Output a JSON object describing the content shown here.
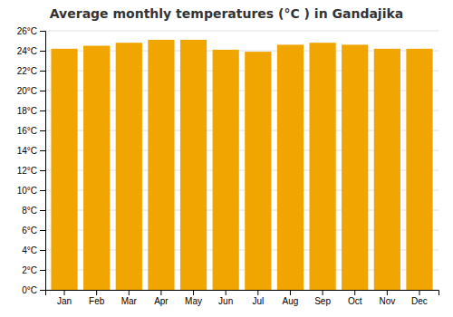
{
  "chart_data": {
    "type": "bar",
    "title": "Average monthly temperatures (°C ) in Gandajika",
    "categories": [
      "Jan",
      "Feb",
      "Mar",
      "Apr",
      "May",
      "Jun",
      "Jul",
      "Aug",
      "Sep",
      "Oct",
      "Nov",
      "Dec"
    ],
    "values": [
      24.2,
      24.5,
      24.8,
      25.1,
      25.1,
      24.1,
      23.9,
      24.6,
      24.8,
      24.6,
      24.2,
      24.2
    ],
    "color": "#F0A500",
    "ylim": [
      0,
      26
    ],
    "yticks": [
      {
        "value": 0,
        "label": "0°C"
      },
      {
        "value": 2,
        "label": "2°C"
      },
      {
        "value": 4,
        "label": "4°C"
      },
      {
        "value": 6,
        "label": "6°C"
      },
      {
        "value": 8,
        "label": "8°C"
      },
      {
        "value": 10,
        "label": "10°C"
      },
      {
        "value": 12,
        "label": "12°C"
      },
      {
        "value": 14,
        "label": "14°C"
      },
      {
        "value": 16,
        "label": "16°C"
      },
      {
        "value": 18,
        "label": "18°C"
      },
      {
        "value": 20,
        "label": "20°C"
      },
      {
        "value": 22,
        "label": "22°C"
      },
      {
        "value": 24,
        "label": "24°C"
      },
      {
        "value": 26,
        "label": "26°C"
      }
    ],
    "grid": true
  }
}
